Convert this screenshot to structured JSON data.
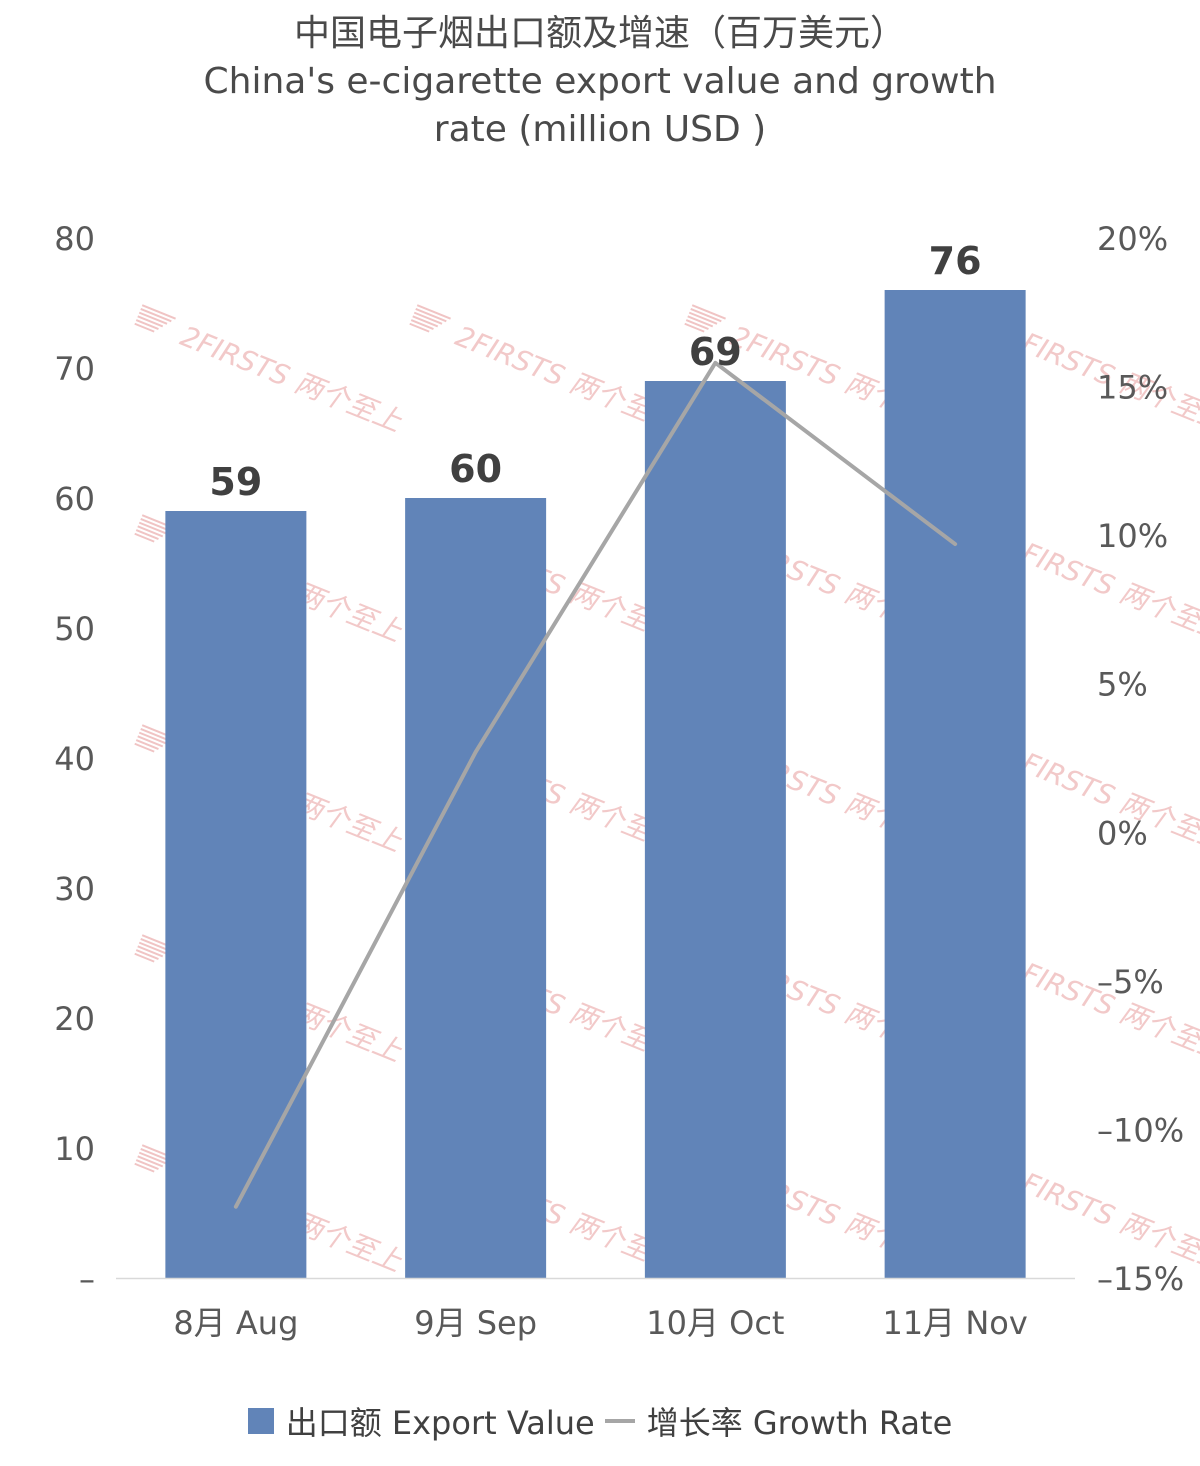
{
  "chart_data": {
    "type": "bar",
    "title": "中国电子烟出口额及增速（百万美元）",
    "subtitle_lines": [
      "China's e-cigarette export value and growth",
      "rate (million USD )"
    ],
    "categories": [
      "8月 Aug",
      "9月 Sep",
      "10月 Oct",
      "11月 Nov"
    ],
    "series": [
      {
        "name": "出口额 Export Value",
        "kind": "bar",
        "axis": "left",
        "values": [
          59,
          60,
          69,
          76
        ],
        "data_labels": [
          "59",
          "60",
          "69",
          "76"
        ],
        "color": "#6184b8"
      },
      {
        "name": "增长率 Growth Rate",
        "kind": "line",
        "axis": "right",
        "values": [
          -12.6,
          2.7,
          15.8,
          9.7
        ],
        "color": "#a6a6a6"
      }
    ],
    "y_left": {
      "min": 0,
      "max": 80,
      "ticks": [
        80,
        70,
        60,
        50,
        40,
        30,
        20,
        10,
        0
      ],
      "tick_labels": [
        "80",
        "70",
        "60",
        "50",
        "40",
        "30",
        "20",
        "10",
        "–"
      ]
    },
    "y_right": {
      "min": -15,
      "max": 20,
      "ticks": [
        20,
        15,
        10,
        5,
        0,
        -5,
        -10,
        -15
      ],
      "tick_labels": [
        "20%",
        "15%",
        "10%",
        "5%",
        "0%",
        "–5%",
        "–10%",
        "–15%"
      ]
    },
    "grid": false,
    "legend_position": "bottom",
    "watermark": "2FIRSTS 两个至上"
  }
}
